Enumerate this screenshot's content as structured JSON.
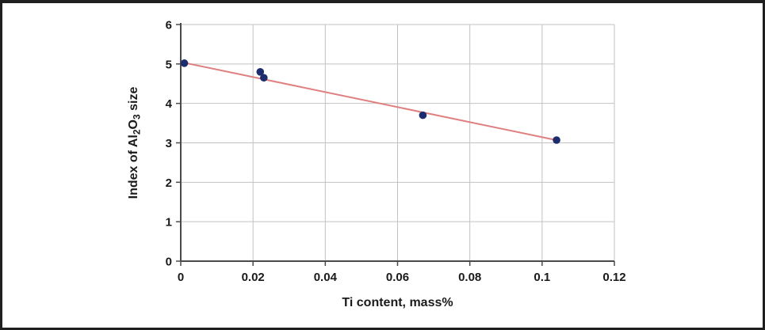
{
  "figure": {
    "background": "#ffffff",
    "frame_color": "#1f1f1f"
  },
  "chart_data": {
    "type": "scatter",
    "title": "",
    "xlabel": "Ti content, mass%",
    "ylabel": "Index of Al2O3 size",
    "ylabel_parts": [
      {
        "t": "Index of Al",
        "sub": false
      },
      {
        "t": "2",
        "sub": true
      },
      {
        "t": "O",
        "sub": false
      },
      {
        "t": "3",
        "sub": true
      },
      {
        "t": " size",
        "sub": false
      }
    ],
    "xlim": [
      0,
      0.12
    ],
    "ylim": [
      0,
      6
    ],
    "xticks": [
      {
        "v": 0,
        "label": "0"
      },
      {
        "v": 0.02,
        "label": "0.02"
      },
      {
        "v": 0.04,
        "label": "0.04"
      },
      {
        "v": 0.06,
        "label": "0.06"
      },
      {
        "v": 0.08,
        "label": "0.08"
      },
      {
        "v": 0.1,
        "label": "0.1"
      },
      {
        "v": 0.12,
        "label": "0.12"
      }
    ],
    "yticks": [
      {
        "v": 0,
        "label": "0"
      },
      {
        "v": 1,
        "label": "1"
      },
      {
        "v": 2,
        "label": "2"
      },
      {
        "v": 3,
        "label": "3"
      },
      {
        "v": 4,
        "label": "4"
      },
      {
        "v": 5,
        "label": "5"
      },
      {
        "v": 6,
        "label": "6"
      }
    ],
    "grid": true,
    "legend": false,
    "series": [
      {
        "name": "Al2O3 size index points",
        "kind": "scatter",
        "color": "#1c2c6e",
        "marker_radius": 4.8,
        "points": [
          {
            "x": 0.001,
            "y": 5.02
          },
          {
            "x": 0.022,
            "y": 4.8
          },
          {
            "x": 0.023,
            "y": 4.65
          },
          {
            "x": 0.067,
            "y": 3.7
          },
          {
            "x": 0.104,
            "y": 3.07
          }
        ]
      },
      {
        "name": "trend line",
        "kind": "line",
        "color": "#e07f80",
        "stroke_width": 2,
        "points": [
          {
            "x": 0.0,
            "y": 5.05
          },
          {
            "x": 0.1044,
            "y": 3.06
          }
        ]
      }
    ],
    "colors": {
      "grid": "#c2c2c2",
      "axis": "#4a4a4a",
      "text": "#1a1a1a"
    }
  }
}
